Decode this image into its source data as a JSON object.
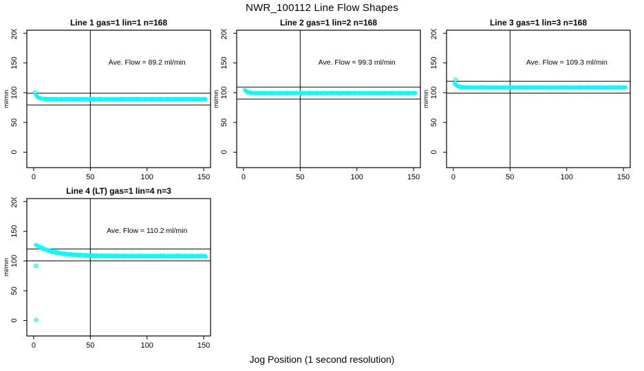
{
  "page": {
    "title": "NWR_100112  Line Flow Shapes",
    "xlabel": "Jog Position (1 second resolution)"
  },
  "chart_data": {
    "type": "scatter",
    "title": "NWR_100112  Line Flow Shapes",
    "xlabel": "Jog Position (1 second resolution)",
    "ylabel": "ml/min",
    "layout": "2 rows x 3 columns, 4 panels used",
    "grid": false,
    "xlim": [
      -6,
      156
    ],
    "ylim": [
      -26,
      205
    ],
    "x_ticks": [
      0,
      50,
      100,
      150
    ],
    "y_ticks": [
      0,
      50,
      100,
      150,
      200
    ],
    "point_color": "#00FFFF",
    "line_color": "#000000",
    "vertical_ref_x": 50,
    "annotation_pos": {
      "x": 100,
      "y": 147
    },
    "panels": [
      {
        "title": "Line 1 gas=1 lin=1 n=168",
        "annotation": "Ave. Flow =  89.2  ml/min",
        "ave_flow": 89.2,
        "ref_lines": [
          99.2,
          79.2
        ],
        "curve": {
          "x_start": 1,
          "x_end": 152,
          "y_start": 100.5,
          "y_settle": 89.3,
          "decay_tau": 2.2,
          "jitter": 0.7
        },
        "outliers": []
      },
      {
        "title": "Line 2 gas=1 lin=2 n=168",
        "annotation": "Ave. Flow =  99.3  ml/min",
        "ave_flow": 99.3,
        "ref_lines": [
          109.3,
          89.3
        ],
        "curve": {
          "x_start": 1,
          "x_end": 152,
          "y_start": 106,
          "y_settle": 99.4,
          "decay_tau": 1.8,
          "jitter": 0.7
        },
        "outliers": []
      },
      {
        "title": "Line 3 gas=1 lin=3 n=168",
        "annotation": "Ave. Flow =  109.3  ml/min",
        "ave_flow": 109.3,
        "ref_lines": [
          119.3,
          99.3
        ],
        "curve": {
          "x_start": 1,
          "x_end": 152,
          "y_start": 116,
          "y_settle": 108.8,
          "decay_tau": 2.5,
          "jitter": 0.7
        },
        "outliers": [
          [
            2,
            122
          ]
        ]
      },
      {
        "title": "Line 4 (LT) gas=1 lin=4 n=3",
        "annotation": "Ave. Flow =  110.2  ml/min",
        "ave_flow": 110.2,
        "ref_lines": [
          120.2,
          100.2
        ],
        "curve": {
          "x_start": 2,
          "x_end": 152,
          "y_start": 127,
          "y_settle": 108.3,
          "decay_tau": 16,
          "jitter": 1.3
        },
        "outliers": [
          [
            2,
            92
          ],
          [
            2,
            1
          ]
        ]
      }
    ]
  }
}
